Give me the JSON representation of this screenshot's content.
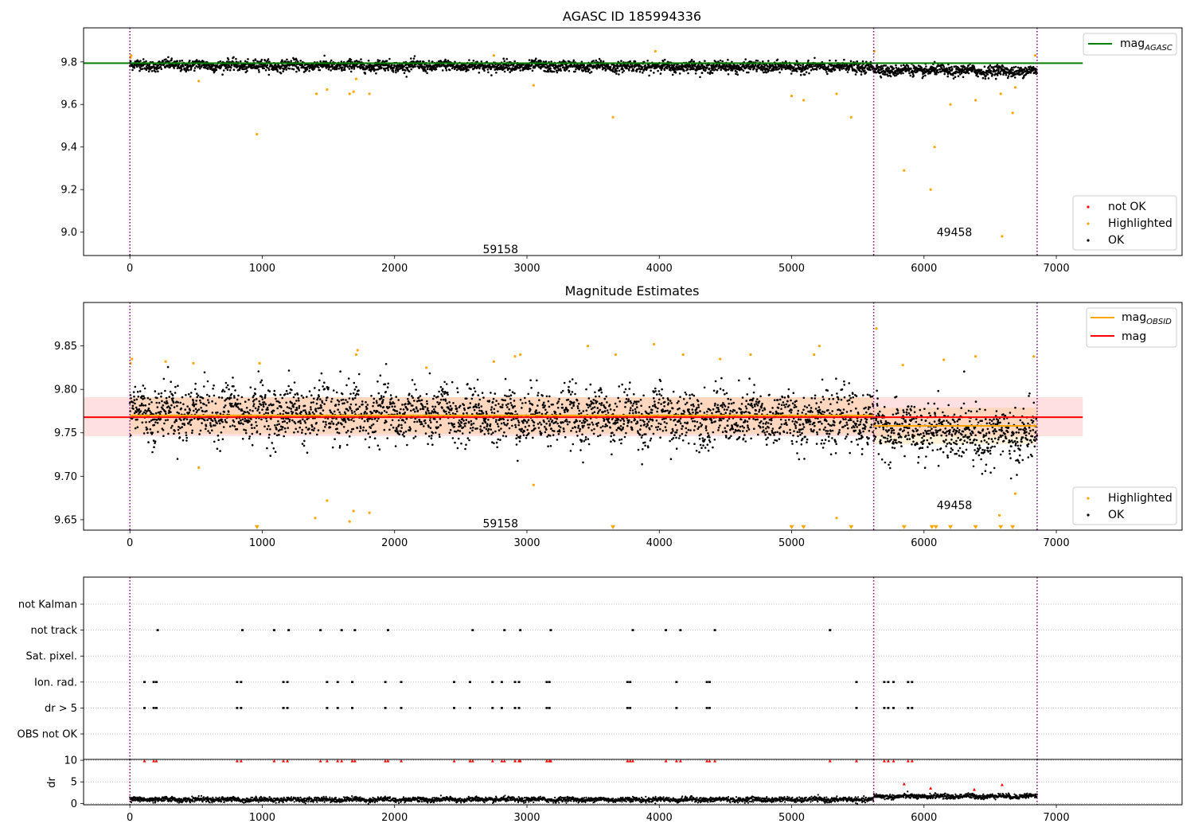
{
  "chart_data": [
    {
      "type": "scatter",
      "title": "AGASC ID 185994336",
      "xlim": [
        -350,
        7950
      ],
      "ylim": [
        8.89,
        9.96
      ],
      "xticks": [
        0,
        1000,
        2000,
        3000,
        4000,
        5000,
        6000,
        7000
      ],
      "yticks": [
        9.0,
        9.2,
        9.4,
        9.6,
        9.8
      ],
      "ytick_labels": [
        "9.0",
        "9.2",
        "9.4",
        "9.6",
        "9.8"
      ],
      "legend": {
        "placement": "top-right and bottom-right",
        "line_entries": [
          {
            "label": "mag",
            "sub": "AGASC",
            "color": "#008000"
          }
        ],
        "point_entries": [
          {
            "label": "not OK",
            "color": "#ff0000"
          },
          {
            "label": "Highlighted",
            "color": "#ffa500"
          },
          {
            "label": "OK",
            "color": "#000000"
          }
        ]
      },
      "reference_line": {
        "name": "mag_AGASC",
        "value": 9.794,
        "x_range": [
          -350,
          7200
        ],
        "color": "#008000"
      },
      "vlines": [
        0,
        5620,
        6855
      ],
      "annotations": [
        {
          "text": "59158",
          "x": 2800,
          "y": 8.92
        },
        {
          "text": "49458",
          "x": 6230,
          "y": 9.0
        }
      ],
      "series": [
        {
          "name": "OK",
          "color": "#000000",
          "band": {
            "x_range": [
              0,
              6855
            ],
            "centers": [
              [
                0,
                9.785
              ],
              [
                5620,
                9.775
              ],
              [
                5620,
                9.762
              ],
              [
                6855,
                9.755
              ]
            ],
            "spread": 0.018
          }
        },
        {
          "name": "Highlighted",
          "color": "#ffa500",
          "points": [
            [
              5,
              9.82
            ],
            [
              10,
              9.83
            ],
            [
              520,
              9.71
            ],
            [
              960,
              9.46
            ],
            [
              1410,
              9.65
            ],
            [
              1490,
              9.67
            ],
            [
              1660,
              9.65
            ],
            [
              1690,
              9.66
            ],
            [
              1710,
              9.72
            ],
            [
              1810,
              9.65
            ],
            [
              2750,
              9.83
            ],
            [
              3050,
              9.69
            ],
            [
              3650,
              9.54
            ],
            [
              3970,
              9.85
            ],
            [
              5000,
              9.64
            ],
            [
              5090,
              9.62
            ],
            [
              5340,
              9.65
            ],
            [
              5450,
              9.54
            ],
            [
              5625,
              9.85
            ],
            [
              5850,
              9.29
            ],
            [
              6050,
              9.2
            ],
            [
              6080,
              9.4
            ],
            [
              6200,
              9.6
            ],
            [
              6390,
              9.62
            ],
            [
              6580,
              9.65
            ],
            [
              6590,
              8.98
            ],
            [
              6670,
              9.56
            ],
            [
              6690,
              9.68
            ],
            [
              6840,
              9.83
            ]
          ]
        }
      ]
    },
    {
      "type": "scatter",
      "title": "Magnitude Estimates",
      "xlim": [
        -350,
        7950
      ],
      "ylim": [
        9.638,
        9.9
      ],
      "xticks": [
        0,
        1000,
        2000,
        3000,
        4000,
        5000,
        6000,
        7000
      ],
      "yticks": [
        9.65,
        9.7,
        9.75,
        9.8,
        9.85
      ],
      "ytick_labels": [
        "9.65",
        "9.70",
        "9.75",
        "9.80",
        "9.85"
      ],
      "legend": {
        "placement": "top-right and bottom-right",
        "line_entries": [
          {
            "label": "mag",
            "sub": "OBSID",
            "color": "#ffa500"
          },
          {
            "label": "mag",
            "sub": "",
            "color": "#ff0000"
          }
        ],
        "point_entries": [
          {
            "label": "Highlighted",
            "color": "#ffa500"
          },
          {
            "label": "OK",
            "color": "#000000"
          }
        ]
      },
      "mag_line": {
        "value": 9.768,
        "x_range": [
          -350,
          7200
        ],
        "band": [
          9.746,
          9.791
        ],
        "color": "#ff0000"
      },
      "obsid_segments": [
        {
          "x_range": [
            0,
            5620
          ],
          "value": 9.77,
          "band": [
            9.749,
            9.791
          ]
        },
        {
          "x_range": [
            5620,
            6855
          ],
          "value": 9.758,
          "band": [
            9.737,
            9.779
          ]
        }
      ],
      "vlines": [
        0,
        5620,
        6855
      ],
      "annotations": [
        {
          "text": "59158",
          "x": 2800,
          "y": 9.646
        },
        {
          "text": "49458",
          "x": 6230,
          "y": 9.667
        }
      ],
      "series": [
        {
          "name": "OK",
          "color": "#000000",
          "band": {
            "x_range": [
              0,
              6855
            ],
            "centers": [
              [
                0,
                9.775
              ],
              [
                5620,
                9.765
              ],
              [
                5620,
                9.755
              ],
              [
                6855,
                9.745
              ]
            ],
            "spread": 0.022
          }
        },
        {
          "name": "Highlighted",
          "color": "#ffa500",
          "points": [
            [
              5,
              9.83
            ],
            [
              15,
              9.835
            ],
            [
              270,
              9.832
            ],
            [
              480,
              9.83
            ],
            [
              520,
              9.71
            ],
            [
              980,
              9.83
            ],
            [
              1400,
              9.652
            ],
            [
              1490,
              9.672
            ],
            [
              1660,
              9.648
            ],
            [
              1690,
              9.66
            ],
            [
              1710,
              9.84
            ],
            [
              1720,
              9.845
            ],
            [
              1810,
              9.658
            ],
            [
              2240,
              9.825
            ],
            [
              2750,
              9.832
            ],
            [
              2910,
              9.838
            ],
            [
              2950,
              9.84
            ],
            [
              3050,
              9.69
            ],
            [
              3460,
              9.85
            ],
            [
              3670,
              9.84
            ],
            [
              3960,
              9.852
            ],
            [
              4180,
              9.84
            ],
            [
              4460,
              9.835
            ],
            [
              4690,
              9.84
            ],
            [
              5170,
              9.84
            ],
            [
              5210,
              9.85
            ],
            [
              5340,
              9.652
            ],
            [
              5640,
              9.87
            ],
            [
              5840,
              9.828
            ],
            [
              6150,
              9.834
            ],
            [
              6390,
              9.838
            ],
            [
              6570,
              9.655
            ],
            [
              6690,
              9.68
            ],
            [
              6830,
              9.838
            ]
          ]
        },
        {
          "name": "below axis",
          "color": "#ffa500",
          "points": [
            [
              960,
              9.641
            ],
            [
              3650,
              9.641
            ],
            [
              5000,
              9.641
            ],
            [
              5090,
              9.641
            ],
            [
              5450,
              9.641
            ],
            [
              5850,
              9.641
            ],
            [
              6060,
              9.641
            ],
            [
              6090,
              9.641
            ],
            [
              6200,
              9.641
            ],
            [
              6390,
              9.641
            ],
            [
              6580,
              9.641
            ],
            [
              6670,
              9.641
            ]
          ]
        }
      ]
    },
    {
      "type": "scatter",
      "title": "",
      "xlim": [
        -350,
        7950
      ],
      "categories": [
        "not Kalman",
        "not track",
        "Sat. pixel.",
        "Ion. rad.",
        "dr > 5",
        "OBS not OK"
      ],
      "flags": {
        "not track": [
          210,
          850,
          1090,
          1200,
          1440,
          1600,
          1700,
          1950,
          2590,
          2830,
          2950,
          3180,
          3800,
          4050,
          4160,
          4420,
          5290
        ],
        "Ion. rad.": [
          110,
          180,
          200,
          810,
          840,
          1160,
          1190,
          1490,
          1570,
          1680,
          1930,
          2050,
          2450,
          2570,
          2740,
          2810,
          2910,
          2940,
          3150,
          3170,
          3760,
          3780,
          4130,
          4360,
          4380,
          5490,
          5700,
          5730,
          5770,
          5880,
          5910
        ],
        "dr > 5": [
          110,
          180,
          200,
          810,
          840,
          1160,
          1190,
          1490,
          1570,
          1680,
          1930,
          2050,
          2450,
          2570,
          2740,
          2810,
          2910,
          2940,
          3150,
          3170,
          3760,
          3780,
          4130,
          4360,
          4380,
          5490,
          5700,
          5730,
          5770,
          5880,
          5910
        ]
      },
      "vlines": [
        0,
        5620,
        6855
      ]
    },
    {
      "type": "scatter",
      "title": "",
      "xlim": [
        -350,
        7950
      ],
      "ylim": [
        -0.3,
        10.2
      ],
      "ylabel": "dr",
      "yticks": [
        0,
        5,
        10
      ],
      "ytick_labels": [
        "0",
        "5",
        "10"
      ],
      "xticks": [
        0,
        1000,
        2000,
        3000,
        4000,
        5000,
        6000,
        7000
      ],
      "vlines": [
        0,
        5620,
        6855
      ],
      "series": [
        {
          "name": "dr",
          "color": "#000000",
          "band": {
            "x_range": [
              0,
              6855
            ],
            "centers": [
              [
                0,
                0.9
              ],
              [
                5620,
                0.9
              ],
              [
                5620,
                1.6
              ],
              [
                6855,
                1.7
              ]
            ],
            "spread": 0.4
          }
        },
        {
          "name": "dr high",
          "color": "#ff0000",
          "points": [
            [
              110,
              9.8
            ],
            [
              180,
              9.8
            ],
            [
              200,
              9.8
            ],
            [
              810,
              9.8
            ],
            [
              840,
              9.8
            ],
            [
              1090,
              9.8
            ],
            [
              1160,
              9.8
            ],
            [
              1190,
              9.8
            ],
            [
              1440,
              9.8
            ],
            [
              1490,
              9.8
            ],
            [
              1570,
              9.8
            ],
            [
              1600,
              9.8
            ],
            [
              1680,
              9.8
            ],
            [
              1700,
              9.8
            ],
            [
              1930,
              9.8
            ],
            [
              1950,
              9.8
            ],
            [
              2050,
              9.8
            ],
            [
              2450,
              9.8
            ],
            [
              2570,
              9.8
            ],
            [
              2590,
              9.8
            ],
            [
              2740,
              9.8
            ],
            [
              2810,
              9.8
            ],
            [
              2830,
              9.8
            ],
            [
              2910,
              9.8
            ],
            [
              2940,
              9.8
            ],
            [
              2950,
              9.8
            ],
            [
              3150,
              9.8
            ],
            [
              3170,
              9.8
            ],
            [
              3180,
              9.8
            ],
            [
              3760,
              9.8
            ],
            [
              3780,
              9.8
            ],
            [
              3800,
              9.8
            ],
            [
              4050,
              9.8
            ],
            [
              4130,
              9.8
            ],
            [
              4160,
              9.8
            ],
            [
              4360,
              9.8
            ],
            [
              4380,
              9.8
            ],
            [
              4420,
              9.8
            ],
            [
              5290,
              9.8
            ],
            [
              5490,
              9.8
            ],
            [
              5700,
              9.8
            ],
            [
              5730,
              9.8
            ],
            [
              5770,
              9.8
            ],
            [
              5880,
              9.8
            ],
            [
              5910,
              9.8
            ],
            [
              5850,
              4.5
            ],
            [
              6050,
              3.5
            ],
            [
              6380,
              3.2
            ],
            [
              6590,
              4.3
            ]
          ]
        }
      ]
    }
  ]
}
